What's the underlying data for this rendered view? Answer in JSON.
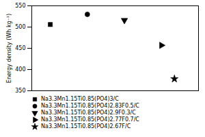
{
  "chart_data": {
    "type": "scatter",
    "ylabel": "Energy density (Wh kg⁻¹)",
    "series": [
      {
        "name": "Na3.3Mn1.15Ti0.85(PO4)3/C",
        "x": [
          1
        ],
        "values": [
          506
        ],
        "marker": "square",
        "color": "black"
      },
      {
        "name": "Na3.3Mn1.15Ti0.85(PO4)2.83F0.5/C",
        "x": [
          2
        ],
        "values": [
          530
        ],
        "marker": "circle",
        "color": "black"
      },
      {
        "name": "Na3.3Mn1.15Ti0.85(PO4)2.9F0.3/C",
        "x": [
          3
        ],
        "values": [
          516
        ],
        "marker": "triangle-down",
        "color": "black"
      },
      {
        "name": "Na3.3Mn1.15Ti0.85(PO4)2.77F0.7/C",
        "x": [
          4
        ],
        "values": [
          457
        ],
        "marker": "triangle-right",
        "color": "black"
      },
      {
        "name": "Na3.3Mn1.15Ti0.85(PO4)2.67F/C",
        "x": [
          4.35
        ],
        "values": [
          378
        ],
        "marker": "star",
        "color": "black"
      }
    ],
    "xlim": [
      0.5,
      5.0
    ],
    "ylim": [
      350,
      550
    ],
    "yticks": [
      350,
      400,
      450,
      500,
      550
    ],
    "grid": false,
    "legend": "bottom",
    "tick_labels": "y"
  }
}
